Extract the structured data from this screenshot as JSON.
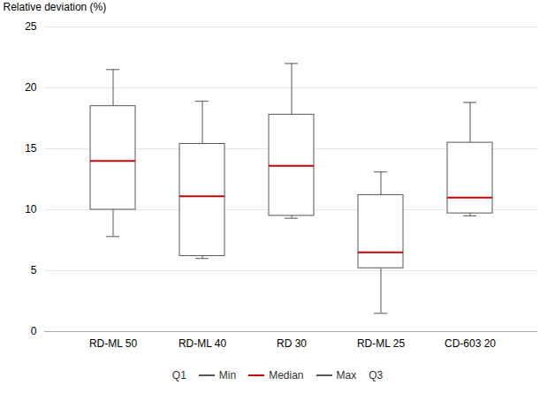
{
  "chart_data": {
    "type": "box",
    "ylabel": "Relative deviation (%)",
    "categories": [
      "RD-ML 50",
      "RD-ML 40",
      "RD 30",
      "RD-ML 25",
      "CD-603 20"
    ],
    "boxes": [
      {
        "q1": 10.0,
        "median": 14.0,
        "q3": 18.5,
        "min": 7.8,
        "max": 21.5
      },
      {
        "q1": 6.2,
        "median": 11.1,
        "q3": 15.4,
        "min": 6.0,
        "max": 18.9
      },
      {
        "q1": 9.5,
        "median": 13.6,
        "q3": 17.8,
        "min": 9.3,
        "max": 22.0
      },
      {
        "q1": 5.2,
        "median": 6.5,
        "q3": 11.2,
        "min": 1.5,
        "max": 13.1
      },
      {
        "q1": 9.7,
        "median": 11.0,
        "q3": 15.5,
        "min": 9.5,
        "max": 18.8
      }
    ],
    "color": "#555555",
    "median_color": "#cc0000",
    "ylim": [
      0,
      25
    ],
    "yticks": [
      0,
      5,
      10,
      15,
      20,
      25
    ],
    "grid": true,
    "legend": "bottom",
    "legend_entries": [
      {
        "label": "Q1"
      },
      {
        "label": "Min",
        "color": "#555555"
      },
      {
        "label": "Median",
        "color": "#cc0000"
      },
      {
        "label": "Max",
        "color": "#555555"
      },
      {
        "label": "Q3"
      }
    ]
  }
}
